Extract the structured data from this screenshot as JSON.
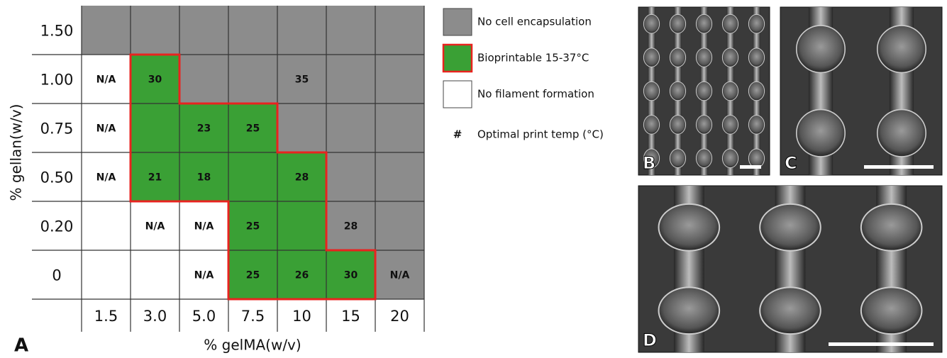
{
  "figure_label": "A",
  "y_axis_label": "% gellan(w/v)",
  "x_axis_label": "% gelMA(w/v)",
  "outline_color": "#e8231f",
  "columns": [
    "1.5",
    "3.0",
    "5.0",
    "7.5",
    "10",
    "15",
    "20"
  ],
  "rows": [
    {
      "label": "1.50",
      "cells": [
        {
          "fill": "#8c8c8c"
        },
        {
          "fill": "#8c8c8c"
        },
        {
          "fill": "#8c8c8c"
        },
        {
          "fill": "#8c8c8c"
        },
        {
          "fill": "#8c8c8c"
        },
        {
          "fill": "#8c8c8c"
        },
        {
          "fill": "#8c8c8c"
        }
      ]
    },
    {
      "label": "1.00",
      "cells": [
        {
          "fill": "#ffffff",
          "text": "N/A"
        },
        {
          "fill": "#3aa035",
          "text": "30"
        },
        {
          "fill": "#8c8c8c"
        },
        {
          "fill": "#8c8c8c"
        },
        {
          "fill": "#8c8c8c",
          "text": "35"
        },
        {
          "fill": "#8c8c8c"
        },
        {
          "fill": "#8c8c8c"
        }
      ]
    },
    {
      "label": "0.75",
      "cells": [
        {
          "fill": "#ffffff",
          "text": "N/A"
        },
        {
          "fill": "#3aa035"
        },
        {
          "fill": "#3aa035",
          "text": "23"
        },
        {
          "fill": "#3aa035",
          "text": "25"
        },
        {
          "fill": "#8c8c8c"
        },
        {
          "fill": "#8c8c8c"
        },
        {
          "fill": "#8c8c8c"
        }
      ]
    },
    {
      "label": "0.50",
      "cells": [
        {
          "fill": "#ffffff",
          "text": "N/A"
        },
        {
          "fill": "#3aa035",
          "text": "21"
        },
        {
          "fill": "#3aa035",
          "text": "18"
        },
        {
          "fill": "#3aa035"
        },
        {
          "fill": "#3aa035",
          "text": "28"
        },
        {
          "fill": "#8c8c8c"
        },
        {
          "fill": "#8c8c8c"
        }
      ]
    },
    {
      "label": "0.20",
      "cells": [
        {
          "fill": "#ffffff"
        },
        {
          "fill": "#ffffff",
          "text": "N/A"
        },
        {
          "fill": "#ffffff",
          "text": "N/A"
        },
        {
          "fill": "#3aa035",
          "text": "25"
        },
        {
          "fill": "#3aa035"
        },
        {
          "fill": "#8c8c8c",
          "text": "28"
        },
        {
          "fill": "#8c8c8c"
        }
      ]
    },
    {
      "label": "0",
      "cells": [
        {
          "fill": "#ffffff"
        },
        {
          "fill": "#ffffff"
        },
        {
          "fill": "#ffffff",
          "text": "N/A"
        },
        {
          "fill": "#3aa035",
          "text": "25"
        },
        {
          "fill": "#3aa035",
          "text": "26"
        },
        {
          "fill": "#3aa035",
          "text": "30"
        },
        {
          "fill": "#8c8c8c",
          "text": "N/A"
        }
      ]
    }
  ],
  "legend": [
    {
      "fill": "#8c8c8c",
      "label": "No cell encapsulation"
    },
    {
      "fill": "#3aa035",
      "outlined": true,
      "label": "Bioprintable 15-37°C"
    },
    {
      "fill": "#ffffff",
      "label": "No filament formation"
    }
  ],
  "legend_note": {
    "symbol": "#",
    "label": "Optimal print temp (°C)"
  },
  "panels": [
    {
      "label": "B"
    },
    {
      "label": "C"
    },
    {
      "label": "D"
    }
  ]
}
